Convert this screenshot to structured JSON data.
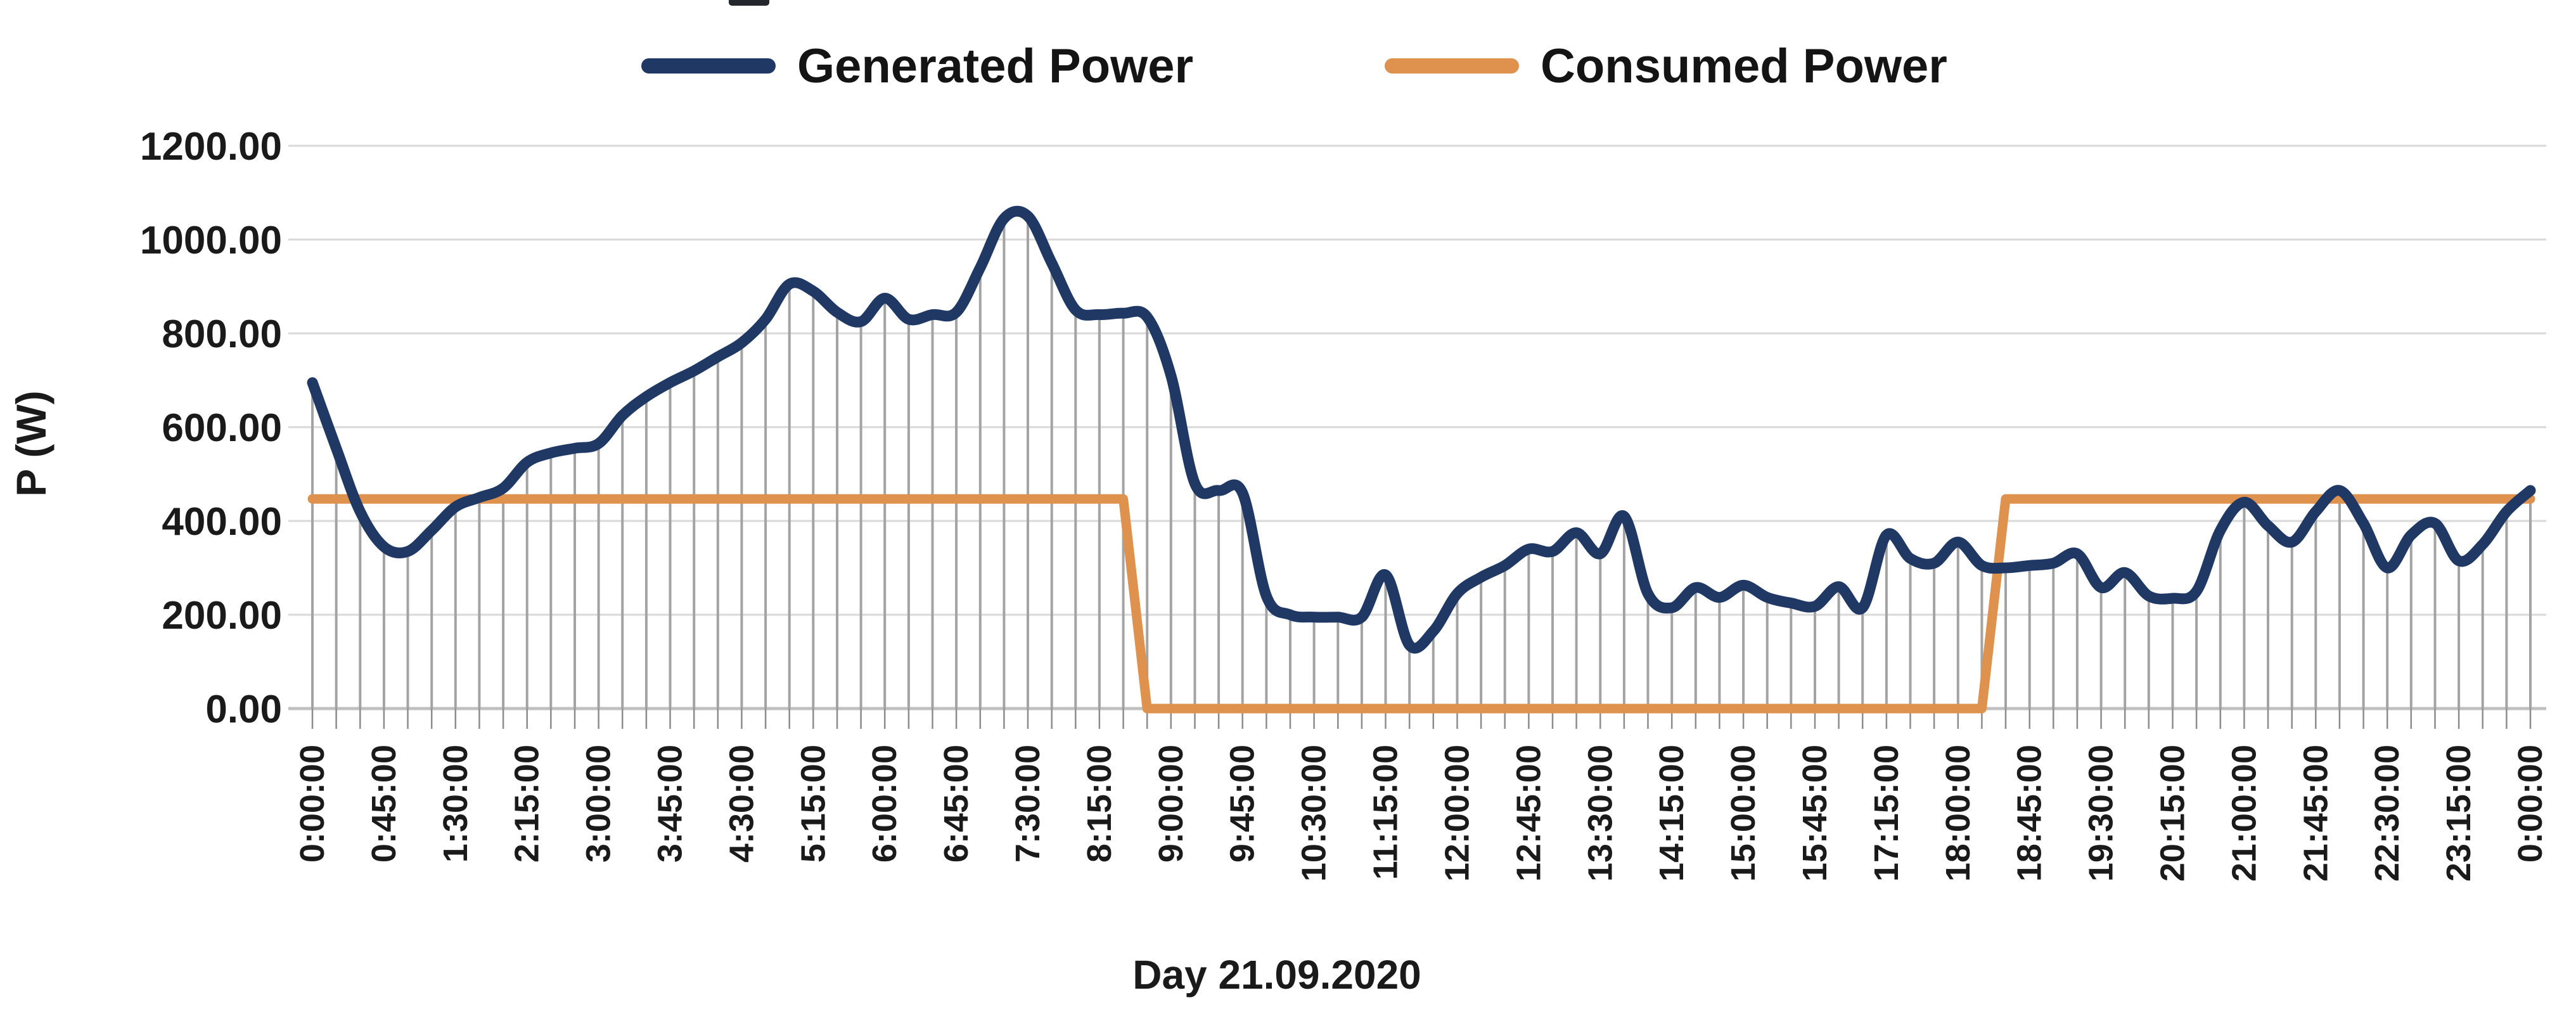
{
  "legend": {
    "generated_label": "Generated Power",
    "consumed_label": "Consumed Power"
  },
  "y_axis": {
    "title": "P (W)",
    "tick_labels": [
      "1200.00",
      "1000.00",
      "800.00",
      "600.00",
      "400.00",
      "200.00",
      "0.00"
    ],
    "min": 0,
    "max": 1200,
    "step": 200
  },
  "x_axis": {
    "title": "Day  21.09.2020",
    "visible_labels": [
      "0:00:00",
      "0:45:00",
      "1:30:00",
      "2:15:00",
      "3:00:00",
      "3:45:00",
      "4:30:00",
      "5:15:00",
      "6:00:00",
      "6:45:00",
      "7:30:00",
      "8:15:00",
      "9:00:00",
      "9:45:00",
      "10:30:00",
      "11:15:00",
      "12:00:00",
      "12:45:00",
      "13:30:00",
      "14:15:00",
      "15:00:00",
      "15:45:00",
      "17:15:00",
      "18:00:00",
      "18:45:00",
      "19:30:00",
      "20:15:00",
      "21:00:00",
      "21:45:00",
      "22:30:00",
      "23:15:00",
      "0:00:00"
    ],
    "label_every_n_points": 3
  },
  "colors": {
    "generated": "#1f3864",
    "consumed": "#df914e",
    "gridline": "#d9d9d9",
    "dropline": "#a3a3a3",
    "axis_line": "#c0c0c0",
    "tick": "#8c8c8c",
    "text": "#1a1a1a"
  },
  "chart_data": {
    "type": "line",
    "title": "",
    "xlabel": "Day  21.09.2020",
    "ylabel": "P (W)",
    "ylim": [
      0,
      1200
    ],
    "grid": "horizontal gridlines every 200 W + gray drop line from every point to x-axis",
    "legend_position": "top",
    "x": [
      "0:00:00",
      "0:15:00",
      "0:30:00",
      "0:45:00",
      "1:00:00",
      "1:15:00",
      "1:30:00",
      "1:45:00",
      "2:00:00",
      "2:15:00",
      "2:30:00",
      "2:45:00",
      "3:00:00",
      "3:15:00",
      "3:30:00",
      "3:45:00",
      "4:00:00",
      "4:15:00",
      "4:30:00",
      "4:45:00",
      "5:00:00",
      "5:15:00",
      "5:30:00",
      "5:45:00",
      "6:00:00",
      "6:15:00",
      "6:30:00",
      "6:45:00",
      "7:00:00",
      "7:15:00",
      "7:30:00",
      "7:45:00",
      "8:00:00",
      "8:15:00",
      "8:30:00",
      "8:45:00",
      "9:00:00",
      "9:15:00",
      "9:30:00",
      "9:45:00",
      "10:00:00",
      "10:15:00",
      "10:30:00",
      "10:45:00",
      "11:00:00",
      "11:15:00",
      "11:30:00",
      "11:45:00",
      "12:00:00",
      "12:15:00",
      "12:30:00",
      "12:45:00",
      "13:00:00",
      "13:15:00",
      "13:30:00",
      "13:45:00",
      "14:00:00",
      "14:15:00",
      "14:30:00",
      "14:45:00",
      "15:00:00",
      "15:15:00",
      "15:30:00",
      "15:45:00",
      "16:15:00",
      "16:45:00",
      "17:15:00",
      "17:30:00",
      "17:45:00",
      "18:00:00",
      "18:15:00",
      "18:30:00",
      "18:45:00",
      "19:00:00",
      "19:15:00",
      "19:30:00",
      "19:45:00",
      "20:00:00",
      "20:15:00",
      "20:30:00",
      "20:45:00",
      "21:00:00",
      "21:15:00",
      "21:30:00",
      "21:45:00",
      "22:00:00",
      "22:15:00",
      "22:30:00",
      "22:45:00",
      "23:00:00",
      "23:15:00",
      "23:30:00",
      "23:45:00",
      "0:00:00"
    ],
    "series": [
      {
        "name": "Generated Power",
        "color": "#1f3864",
        "smooth": true,
        "values": [
          695,
          555,
          420,
          345,
          335,
          380,
          430,
          450,
          470,
          525,
          545,
          555,
          565,
          625,
          665,
          695,
          720,
          750,
          780,
          830,
          905,
          890,
          845,
          825,
          875,
          830,
          840,
          845,
          940,
          1045,
          1050,
          950,
          850,
          840,
          843,
          835,
          710,
          480,
          465,
          460,
          240,
          200,
          195,
          195,
          195,
          285,
          135,
          165,
          245,
          280,
          305,
          340,
          335,
          375,
          330,
          410,
          245,
          215,
          258,
          237,
          263,
          237,
          225,
          218,
          260,
          215,
          370,
          320,
          310,
          355,
          305,
          300,
          305,
          310,
          330,
          258,
          290,
          240,
          235,
          250,
          380,
          440,
          390,
          355,
          420,
          465,
          395,
          300,
          370,
          395,
          315,
          350,
          420,
          465
        ]
      },
      {
        "name": "Consumed Power",
        "color": "#df914e",
        "smooth": false,
        "values": [
          447,
          447,
          447,
          447,
          447,
          447,
          447,
          447,
          447,
          447,
          447,
          447,
          447,
          447,
          447,
          447,
          447,
          447,
          447,
          447,
          447,
          447,
          447,
          447,
          447,
          447,
          447,
          447,
          447,
          447,
          447,
          447,
          447,
          447,
          447,
          0,
          0,
          0,
          0,
          0,
          0,
          0,
          0,
          0,
          0,
          0,
          0,
          0,
          0,
          0,
          0,
          0,
          0,
          0,
          0,
          0,
          0,
          0,
          0,
          0,
          0,
          0,
          0,
          0,
          0,
          0,
          0,
          0,
          0,
          0,
          0,
          447,
          447,
          447,
          447,
          447,
          447,
          447,
          447,
          447,
          447,
          447,
          447,
          447,
          447,
          447,
          447,
          447,
          447,
          447,
          447,
          447,
          447,
          447
        ]
      }
    ]
  }
}
